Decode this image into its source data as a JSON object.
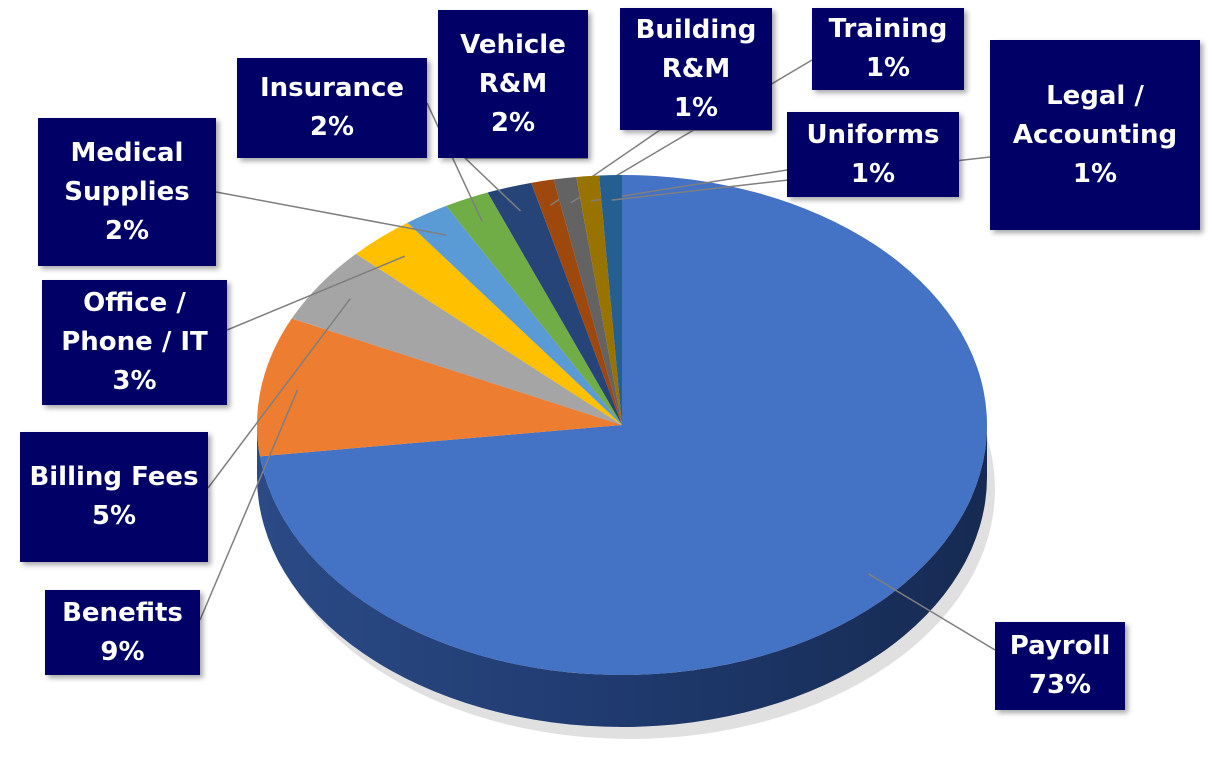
{
  "chart_data": {
    "type": "pie",
    "categories": [
      "Payroll",
      "Benefits",
      "Billing Fees",
      "Office / Phone / IT",
      "Medical Supplies",
      "Insurance",
      "Vehicle R&M",
      "Building R&M",
      "Training",
      "Uniforms",
      "Legal / Accounting"
    ],
    "values": [
      73,
      9,
      5,
      3,
      2,
      2,
      2,
      1,
      1,
      1,
      1
    ],
    "value_labels": [
      "73%",
      "9%",
      "5%",
      "3%",
      "2%",
      "2%",
      "2%",
      "1%",
      "1%",
      "1%",
      "1%"
    ],
    "colors": [
      "#4472c4",
      "#ed7d31",
      "#a5a5a5",
      "#ffc000",
      "#5b9bd5",
      "#70ad47",
      "#264478",
      "#9e480e",
      "#636363",
      "#997300",
      "#255e91"
    ]
  }
}
